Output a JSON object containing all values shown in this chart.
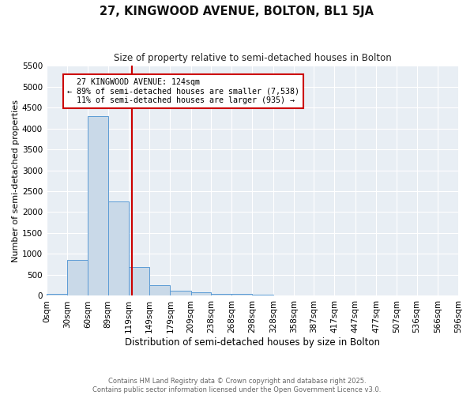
{
  "title": "27, KINGWOOD AVENUE, BOLTON, BL1 5JA",
  "subtitle": "Size of property relative to semi-detached houses in Bolton",
  "xlabel": "Distribution of semi-detached houses by size in Bolton",
  "ylabel": "Number of semi-detached properties",
  "bin_edges": [
    0,
    30,
    60,
    89,
    119,
    149,
    179,
    209,
    238,
    268,
    298,
    328,
    358,
    387,
    417,
    447,
    477,
    507,
    536,
    566,
    596
  ],
  "bin_counts": [
    40,
    850,
    4300,
    2250,
    680,
    250,
    120,
    75,
    55,
    45,
    35,
    5,
    2,
    1,
    1,
    0,
    0,
    0,
    0,
    0
  ],
  "bar_color": "#c9d9e8",
  "bar_edge_color": "#5b9bd5",
  "property_size": 124,
  "property_name": "27 KINGWOOD AVENUE: 124sqm",
  "pct_smaller": 89,
  "n_smaller": 7538,
  "pct_larger": 11,
  "n_larger": 935,
  "vline_color": "#cc0000",
  "annotation_box_color": "#cc0000",
  "ylim": [
    0,
    5500
  ],
  "yticks": [
    0,
    500,
    1000,
    1500,
    2000,
    2500,
    3000,
    3500,
    4000,
    4500,
    5000,
    5500
  ],
  "background_color": "#e8eef4",
  "footer_line1": "Contains HM Land Registry data © Crown copyright and database right 2025.",
  "footer_line2": "Contains public sector information licensed under the Open Government Licence v3.0."
}
